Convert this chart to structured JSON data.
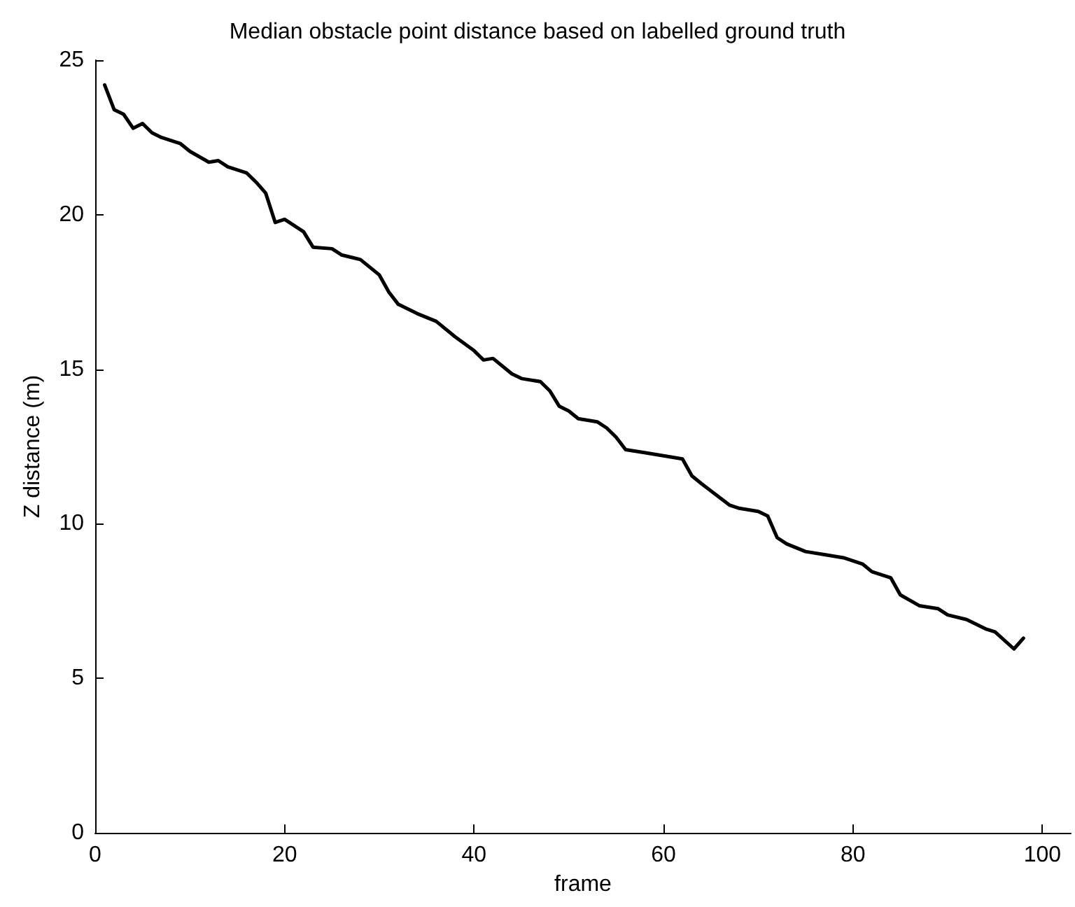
{
  "chart_data": {
    "type": "line",
    "title": "Median obstacle point distance based on labelled ground truth",
    "xlabel": "frame",
    "ylabel": "Z distance (m)",
    "x": [
      1,
      2,
      3,
      4,
      5,
      6,
      7,
      9,
      10,
      12,
      13,
      14,
      16,
      17,
      18,
      19,
      20,
      22,
      23,
      25,
      26,
      28,
      30,
      31,
      32,
      34,
      36,
      38,
      40,
      41,
      42,
      44,
      45,
      47,
      48,
      49,
      50,
      51,
      53,
      54,
      55,
      56,
      58,
      60,
      62,
      63,
      64,
      67,
      68,
      70,
      71,
      72,
      73,
      75,
      77,
      79,
      81,
      82,
      84,
      85,
      87,
      89,
      90,
      92,
      94,
      95,
      97,
      98
    ],
    "series": [
      {
        "color": "#000000",
        "values": [
          24.2,
          23.4,
          23.25,
          22.8,
          22.95,
          22.65,
          22.5,
          22.3,
          22.05,
          21.7,
          21.75,
          21.55,
          21.35,
          21.05,
          20.7,
          19.75,
          19.85,
          19.45,
          18.95,
          18.9,
          18.7,
          18.55,
          18.05,
          17.5,
          17.1,
          16.8,
          16.55,
          16.05,
          15.6,
          15.3,
          15.35,
          14.85,
          14.7,
          14.6,
          14.3,
          13.8,
          13.65,
          13.4,
          13.3,
          13.1,
          12.8,
          12.4,
          12.3,
          12.2,
          12.1,
          11.55,
          11.3,
          10.6,
          10.5,
          10.4,
          10.25,
          9.55,
          9.35,
          9.1,
          9.0,
          8.9,
          8.7,
          8.45,
          8.25,
          7.7,
          7.35,
          7.25,
          7.05,
          6.9,
          6.6,
          6.5,
          5.95,
          6.3
        ]
      }
    ],
    "xlim": [
      0,
      103
    ],
    "xticks": [
      0,
      20,
      40,
      60,
      80,
      100
    ],
    "ylim": [
      0,
      25
    ],
    "yticks": [
      0,
      5,
      10,
      15,
      20,
      25
    ],
    "marker": "none",
    "line_style": "solid"
  }
}
